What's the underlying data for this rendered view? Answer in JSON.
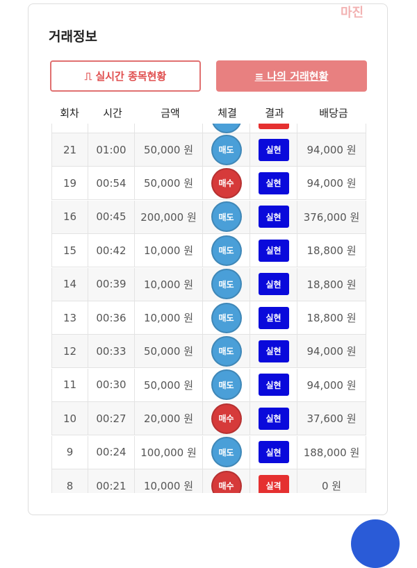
{
  "watermark": "마진",
  "card": {
    "title": "거래정보",
    "buttons": [
      {
        "label": "실시간 종목현황"
      },
      {
        "label": "나의 거래현황"
      }
    ],
    "table": {
      "headers": [
        "회차",
        "시간",
        "금액",
        "체결",
        "결과",
        "배당금"
      ],
      "rows": [
        {
          "round": "21",
          "time": "01:00",
          "amount": "50,000 원",
          "side": "매도",
          "side_color": "#4a9fd8",
          "result": "실현",
          "result_color": "#0a0adb",
          "payout": "94,000 원"
        },
        {
          "round": "19",
          "time": "00:54",
          "amount": "50,000 원",
          "side": "매수",
          "side_color": "#d63a3a",
          "result": "실현",
          "result_color": "#0a0adb",
          "payout": "94,000 원"
        },
        {
          "round": "16",
          "time": "00:45",
          "amount": "200,000 원",
          "side": "매도",
          "side_color": "#4a9fd8",
          "result": "실현",
          "result_color": "#0a0adb",
          "payout": "376,000 원"
        },
        {
          "round": "15",
          "time": "00:42",
          "amount": "10,000 원",
          "side": "매도",
          "side_color": "#4a9fd8",
          "result": "실현",
          "result_color": "#0a0adb",
          "payout": "18,800 원"
        },
        {
          "round": "14",
          "time": "00:39",
          "amount": "10,000 원",
          "side": "매도",
          "side_color": "#4a9fd8",
          "result": "실현",
          "result_color": "#0a0adb",
          "payout": "18,800 원"
        },
        {
          "round": "13",
          "time": "00:36",
          "amount": "10,000 원",
          "side": "매도",
          "side_color": "#4a9fd8",
          "result": "실현",
          "result_color": "#0a0adb",
          "payout": "18,800 원"
        },
        {
          "round": "12",
          "time": "00:33",
          "amount": "50,000 원",
          "side": "매도",
          "side_color": "#4a9fd8",
          "result": "실현",
          "result_color": "#0a0adb",
          "payout": "94,000 원"
        },
        {
          "round": "11",
          "time": "00:30",
          "amount": "50,000 원",
          "side": "매도",
          "side_color": "#4a9fd8",
          "result": "실현",
          "result_color": "#0a0adb",
          "payout": "94,000 원"
        },
        {
          "round": "10",
          "time": "00:27",
          "amount": "20,000 원",
          "side": "매수",
          "side_color": "#d63a3a",
          "result": "실현",
          "result_color": "#0a0adb",
          "payout": "37,600 원"
        },
        {
          "round": "9",
          "time": "00:24",
          "amount": "100,000 원",
          "side": "매도",
          "side_color": "#4a9fd8",
          "result": "실현",
          "result_color": "#0a0adb",
          "payout": "188,000 원"
        },
        {
          "round": "8",
          "time": "00:21",
          "amount": "10,000 원",
          "side": "매수",
          "side_color": "#d63a3a",
          "result": "실격",
          "result_color": "#e53030",
          "payout": "0 원"
        }
      ]
    }
  }
}
